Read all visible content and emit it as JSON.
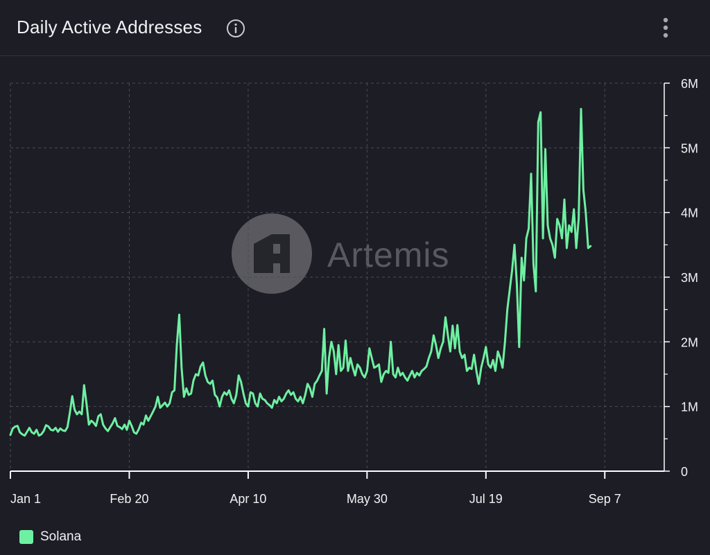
{
  "header": {
    "title": "Daily Active Addresses",
    "info_icon": "info-icon",
    "menu_icon": "kebab-menu-icon"
  },
  "watermark": "Artemis",
  "colors": {
    "background": "#1d1d25",
    "line": "#6ef0a2",
    "grid": "#4a4a55",
    "axis": "#ffffff",
    "text": "#f1f1f5"
  },
  "chart_data": {
    "type": "line",
    "x_ticks": [
      "Jan 1",
      "Feb 20",
      "Apr 10",
      "May 30",
      "Jul 19",
      "Sep 7"
    ],
    "y_ticks": [
      "0",
      "1M",
      "2M",
      "3M",
      "4M",
      "5M",
      "6M"
    ],
    "ylim": [
      0,
      6000000
    ],
    "xlim_days": [
      0,
      275
    ],
    "grid": true,
    "legend_position": "bottom-left",
    "series": [
      {
        "name": "Solana",
        "color": "#6ef0a2",
        "points": [
          [
            0,
            0.56
          ],
          [
            1,
            0.66
          ],
          [
            2,
            0.69
          ],
          [
            3,
            0.7
          ],
          [
            4,
            0.6
          ],
          [
            5,
            0.57
          ],
          [
            6,
            0.55
          ],
          [
            7,
            0.61
          ],
          [
            8,
            0.67
          ],
          [
            9,
            0.6
          ],
          [
            10,
            0.58
          ],
          [
            11,
            0.64
          ],
          [
            12,
            0.55
          ],
          [
            13,
            0.57
          ],
          [
            14,
            0.62
          ],
          [
            15,
            0.71
          ],
          [
            16,
            0.69
          ],
          [
            17,
            0.64
          ],
          [
            18,
            0.63
          ],
          [
            19,
            0.67
          ],
          [
            20,
            0.61
          ],
          [
            21,
            0.66
          ],
          [
            22,
            0.63
          ],
          [
            23,
            0.62
          ],
          [
            24,
            0.68
          ],
          [
            25,
            0.9
          ],
          [
            26,
            1.16
          ],
          [
            27,
            0.95
          ],
          [
            28,
            0.88
          ],
          [
            29,
            0.92
          ],
          [
            30,
            0.88
          ],
          [
            31,
            1.33
          ],
          [
            32,
            1.05
          ],
          [
            33,
            0.72
          ],
          [
            34,
            0.78
          ],
          [
            35,
            0.75
          ],
          [
            36,
            0.7
          ],
          [
            37,
            0.85
          ],
          [
            38,
            0.88
          ],
          [
            39,
            0.72
          ],
          [
            40,
            0.66
          ],
          [
            41,
            0.62
          ],
          [
            42,
            0.68
          ],
          [
            43,
            0.74
          ],
          [
            44,
            0.82
          ],
          [
            45,
            0.7
          ],
          [
            46,
            0.68
          ],
          [
            47,
            0.65
          ],
          [
            48,
            0.72
          ],
          [
            49,
            0.64
          ],
          [
            50,
            0.78
          ],
          [
            51,
            0.7
          ],
          [
            52,
            0.6
          ],
          [
            53,
            0.58
          ],
          [
            54,
            0.65
          ],
          [
            55,
            0.75
          ],
          [
            56,
            0.72
          ],
          [
            57,
            0.86
          ],
          [
            58,
            0.78
          ],
          [
            59,
            0.85
          ],
          [
            60,
            0.92
          ],
          [
            61,
            1.0
          ],
          [
            62,
            1.15
          ],
          [
            63,
            0.98
          ],
          [
            64,
            1.02
          ],
          [
            65,
            1.06
          ],
          [
            66,
            1.0
          ],
          [
            67,
            1.05
          ],
          [
            68,
            1.22
          ],
          [
            69,
            1.25
          ],
          [
            70,
            1.95
          ],
          [
            71,
            2.42
          ],
          [
            72,
            1.6
          ],
          [
            73,
            1.15
          ],
          [
            74,
            1.28
          ],
          [
            75,
            1.18
          ],
          [
            76,
            1.2
          ],
          [
            77,
            1.4
          ],
          [
            78,
            1.5
          ],
          [
            79,
            1.48
          ],
          [
            80,
            1.62
          ],
          [
            81,
            1.68
          ],
          [
            82,
            1.48
          ],
          [
            83,
            1.38
          ],
          [
            84,
            1.35
          ],
          [
            85,
            1.4
          ],
          [
            86,
            1.18
          ],
          [
            87,
            1.14
          ],
          [
            88,
            1.0
          ],
          [
            89,
            1.15
          ],
          [
            90,
            1.22
          ],
          [
            91,
            1.18
          ],
          [
            92,
            1.25
          ],
          [
            93,
            1.12
          ],
          [
            94,
            1.05
          ],
          [
            95,
            1.18
          ],
          [
            96,
            1.48
          ],
          [
            97,
            1.38
          ],
          [
            98,
            1.2
          ],
          [
            99,
            1.05
          ],
          [
            100,
            1.0
          ],
          [
            101,
            1.22
          ],
          [
            102,
            1.2
          ],
          [
            103,
            1.05
          ],
          [
            104,
            1.0
          ],
          [
            105,
            1.2
          ],
          [
            106,
            1.12
          ],
          [
            107,
            1.1
          ],
          [
            108,
            1.05
          ],
          [
            109,
            1.02
          ],
          [
            110,
            0.98
          ],
          [
            111,
            1.1
          ],
          [
            112,
            1.05
          ],
          [
            113,
            1.15
          ],
          [
            114,
            1.08
          ],
          [
            115,
            1.12
          ],
          [
            116,
            1.2
          ],
          [
            117,
            1.25
          ],
          [
            118,
            1.18
          ],
          [
            119,
            1.22
          ],
          [
            120,
            1.12
          ],
          [
            121,
            1.08
          ],
          [
            122,
            1.15
          ],
          [
            123,
            1.05
          ],
          [
            124,
            1.18
          ],
          [
            125,
            1.35
          ],
          [
            126,
            1.28
          ],
          [
            127,
            1.15
          ],
          [
            128,
            1.35
          ],
          [
            129,
            1.4
          ],
          [
            130,
            1.48
          ],
          [
            131,
            1.55
          ],
          [
            132,
            2.2
          ],
          [
            133,
            1.2
          ],
          [
            134,
            1.75
          ],
          [
            135,
            2.0
          ],
          [
            136,
            1.85
          ],
          [
            137,
            1.5
          ],
          [
            138,
            1.95
          ],
          [
            139,
            1.55
          ],
          [
            140,
            1.6
          ],
          [
            141,
            2.02
          ],
          [
            142,
            1.55
          ],
          [
            143,
            1.75
          ],
          [
            144,
            1.6
          ],
          [
            145,
            1.48
          ],
          [
            146,
            1.65
          ],
          [
            147,
            1.6
          ],
          [
            148,
            1.5
          ],
          [
            149,
            1.45
          ],
          [
            150,
            1.55
          ],
          [
            151,
            1.9
          ],
          [
            152,
            1.75
          ],
          [
            153,
            1.6
          ],
          [
            154,
            1.62
          ],
          [
            155,
            1.65
          ],
          [
            156,
            1.38
          ],
          [
            157,
            1.5
          ],
          [
            158,
            1.55
          ],
          [
            159,
            1.52
          ],
          [
            160,
            2.0
          ],
          [
            161,
            1.5
          ],
          [
            162,
            1.45
          ],
          [
            163,
            1.6
          ],
          [
            164,
            1.48
          ],
          [
            165,
            1.52
          ],
          [
            166,
            1.45
          ],
          [
            167,
            1.4
          ],
          [
            168,
            1.48
          ],
          [
            169,
            1.55
          ],
          [
            170,
            1.45
          ],
          [
            171,
            1.52
          ],
          [
            172,
            1.48
          ],
          [
            173,
            1.55
          ],
          [
            174,
            1.58
          ],
          [
            175,
            1.62
          ],
          [
            176,
            1.75
          ],
          [
            177,
            1.85
          ],
          [
            178,
            2.1
          ],
          [
            179,
            1.95
          ],
          [
            180,
            1.75
          ],
          [
            181,
            1.9
          ],
          [
            182,
            2.0
          ],
          [
            183,
            2.38
          ],
          [
            184,
            2.1
          ],
          [
            185,
            1.85
          ],
          [
            186,
            2.25
          ],
          [
            187,
            1.9
          ],
          [
            188,
            2.26
          ],
          [
            189,
            1.85
          ],
          [
            190,
            1.75
          ],
          [
            191,
            1.8
          ],
          [
            192,
            1.55
          ],
          [
            193,
            1.6
          ],
          [
            194,
            1.58
          ],
          [
            195,
            1.8
          ],
          [
            196,
            1.55
          ],
          [
            197,
            1.35
          ],
          [
            198,
            1.6
          ],
          [
            199,
            1.75
          ],
          [
            200,
            1.92
          ],
          [
            201,
            1.65
          ],
          [
            202,
            1.6
          ],
          [
            203,
            1.72
          ],
          [
            204,
            1.55
          ],
          [
            205,
            1.85
          ],
          [
            206,
            1.75
          ],
          [
            207,
            1.6
          ],
          [
            208,
            2.0
          ],
          [
            209,
            2.5
          ],
          [
            210,
            2.8
          ],
          [
            211,
            3.1
          ],
          [
            212,
            3.5
          ],
          [
            213,
            2.9
          ],
          [
            214,
            1.92
          ],
          [
            215,
            3.3
          ],
          [
            216,
            2.95
          ],
          [
            217,
            3.6
          ],
          [
            218,
            3.75
          ],
          [
            219,
            4.6
          ],
          [
            220,
            3.2
          ],
          [
            221,
            2.78
          ],
          [
            222,
            5.4
          ],
          [
            223,
            5.55
          ],
          [
            224,
            3.6
          ],
          [
            225,
            4.98
          ],
          [
            226,
            3.8
          ],
          [
            227,
            3.6
          ],
          [
            228,
            3.5
          ],
          [
            229,
            3.3
          ],
          [
            230,
            3.9
          ],
          [
            231,
            3.8
          ],
          [
            232,
            3.6
          ],
          [
            233,
            4.2
          ],
          [
            234,
            3.45
          ],
          [
            235,
            3.8
          ],
          [
            236,
            3.7
          ],
          [
            237,
            4.05
          ],
          [
            238,
            3.45
          ],
          [
            239,
            3.9
          ],
          [
            240,
            5.6
          ],
          [
            241,
            4.35
          ],
          [
            242,
            4.0
          ],
          [
            243,
            3.45
          ],
          [
            244,
            3.48
          ]
        ]
      }
    ]
  },
  "legend": {
    "label": "Solana"
  }
}
